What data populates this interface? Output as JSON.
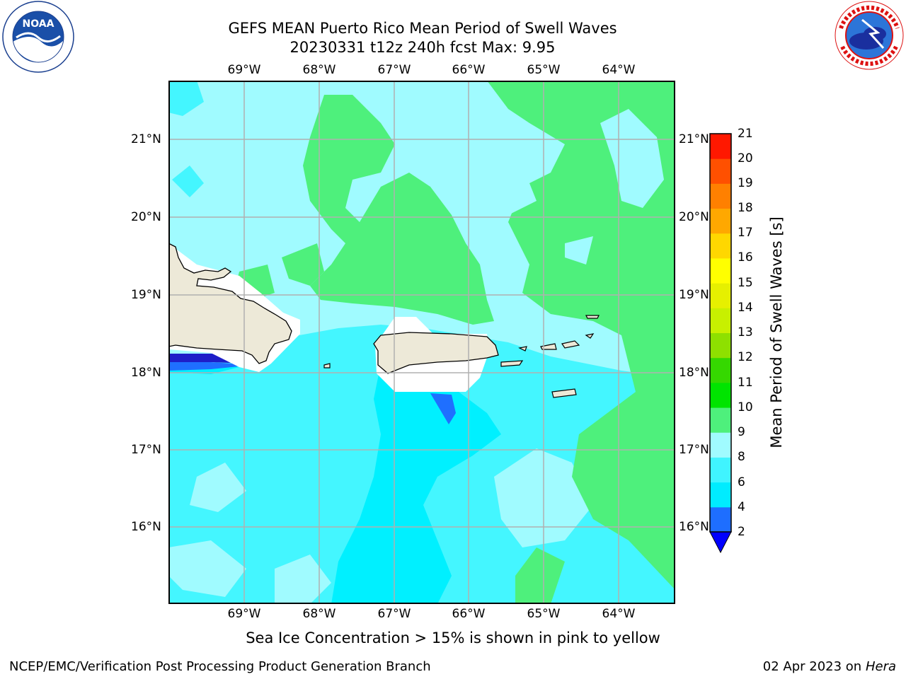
{
  "title": {
    "line1": "GEFS MEAN Puerto Rico Mean Period of Swell Waves",
    "line2": "20230331 t12z 240h fcst   Max: 9.95"
  },
  "logos": {
    "left": {
      "text": "NOAA",
      "ring_text": "NATIONAL OCEANIC AND ATMOSPHERIC ADMINISTRATION · U.S. DEPARTMENT OF COMMERCE"
    },
    "right": {
      "ring_text": "NATIONAL WEATHER SERVICE"
    }
  },
  "map": {
    "lon_labels": [
      "69°W",
      "68°W",
      "67°W",
      "66°W",
      "65°W",
      "64°W"
    ],
    "lat_labels": [
      "21°N",
      "20°N",
      "19°N",
      "18°N",
      "17°N",
      "16°N"
    ],
    "colors": {
      "land": "#ede9d8",
      "grid": "#b0b0b0",
      "c4_6": "#00f0ff",
      "c6_8": "#44f6ff",
      "c8_9": "#a0fbff",
      "c9_10": "#4ef07c",
      "c2_4": "#1f6fff",
      "c0_2": "#1e1ec8"
    }
  },
  "colorbar": {
    "label": "Mean Period of Swell Waves [s]",
    "ticks": [
      "2",
      "4",
      "6",
      "8",
      "9",
      "10",
      "11",
      "12",
      "13",
      "14",
      "15",
      "16",
      "17",
      "18",
      "19",
      "20",
      "21"
    ],
    "colors": [
      "#1e6eff",
      "#00ecff",
      "#40f4ff",
      "#a0fbff",
      "#4ef07c",
      "#00e400",
      "#35d800",
      "#8ee000",
      "#c8f000",
      "#e6f000",
      "#ffff00",
      "#ffd700",
      "#ffa800",
      "#ff8000",
      "#ff5000",
      "#ff1800"
    ],
    "under_color": "#0000ff"
  },
  "caption": "Sea Ice Concentration > 15% is shown in pink to yellow",
  "footer": {
    "left": "NCEP/EMC/Verification Post Processing Product Generation Branch",
    "right_date": "02 Apr 2023 on ",
    "right_machine": "Hera"
  }
}
